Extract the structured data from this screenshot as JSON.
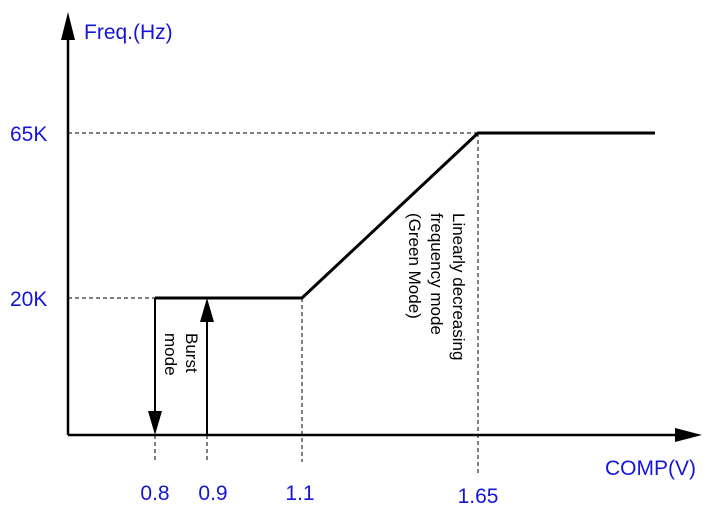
{
  "chart_data": {
    "type": "line",
    "ylabel": "Freq.(Hz)",
    "xlabel": "COMP(V)",
    "x_ticks": [
      "0.8",
      "0.9",
      "1.1",
      "1.65"
    ],
    "y_ticks": [
      "20K",
      "65K"
    ],
    "series": [
      {
        "x": [
          0.8,
          1.1,
          1.65,
          1.9
        ],
        "y": [
          20000,
          20000,
          65000,
          65000
        ]
      }
    ],
    "annotations": {
      "burst_mode": [
        "Burst",
        "mode"
      ],
      "green_mode": [
        "Linearly decreasing",
        "frequency mode",
        "(Green Mode)"
      ]
    },
    "colors": {
      "labels": "#1515d6",
      "lines": "#000000"
    }
  }
}
